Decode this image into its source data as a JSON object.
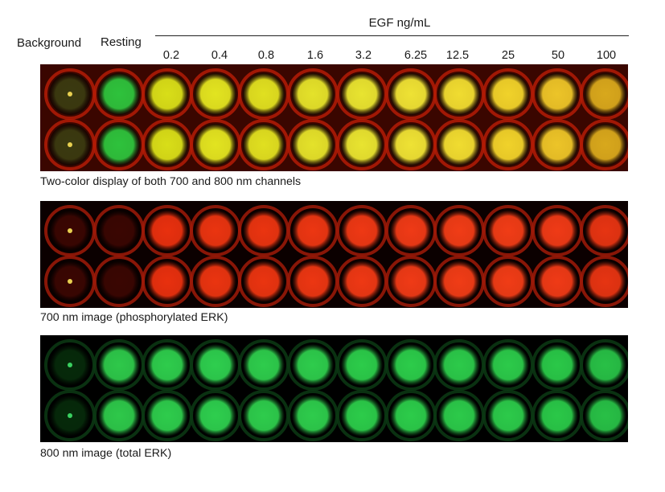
{
  "header": {
    "egf_title": "EGF ng/mL",
    "background_label": "Background",
    "resting_label": "Resting",
    "concentrations": [
      "0.2",
      "0.4",
      "0.8",
      "1.6",
      "3.2",
      "6.25",
      "12.5",
      "25",
      "50",
      "100"
    ]
  },
  "panels": [
    {
      "id": "twocolor",
      "caption": "Two-color display of both 700 and 800 nm channels",
      "tray_color": "#b41c06",
      "well_colors": [
        "#3a3a10",
        "#2ec23c",
        "#d8de18",
        "#e2e420",
        "#e0e020",
        "#e4e22a",
        "#e8e430",
        "#eee234",
        "#f0dc30",
        "#f0d22a",
        "#ecc428",
        "#d8a81c"
      ]
    },
    {
      "id": "700",
      "caption": "700 nm image (phosphorylated ERK)",
      "tray_color": "#a01a08",
      "well_colors": [
        "#3a0602",
        "#3a0602",
        "#e8300e",
        "#ea3410",
        "#ea3410",
        "#ec3612",
        "#ee3814",
        "#ef3a16",
        "#f03c16",
        "#f03c16",
        "#ef3a16",
        "#e63412"
      ]
    },
    {
      "id": "800",
      "caption": "800 nm image (total ERK)",
      "tray_color": "#0c3a14",
      "well_colors": [
        "#062a0a",
        "#2ec84a",
        "#2ecc4c",
        "#2ece4e",
        "#2ecc4c",
        "#2ecc4c",
        "#2ccc4a",
        "#2ccc4a",
        "#2cca4a",
        "#2cca4a",
        "#2ac848",
        "#28c046"
      ]
    }
  ]
}
